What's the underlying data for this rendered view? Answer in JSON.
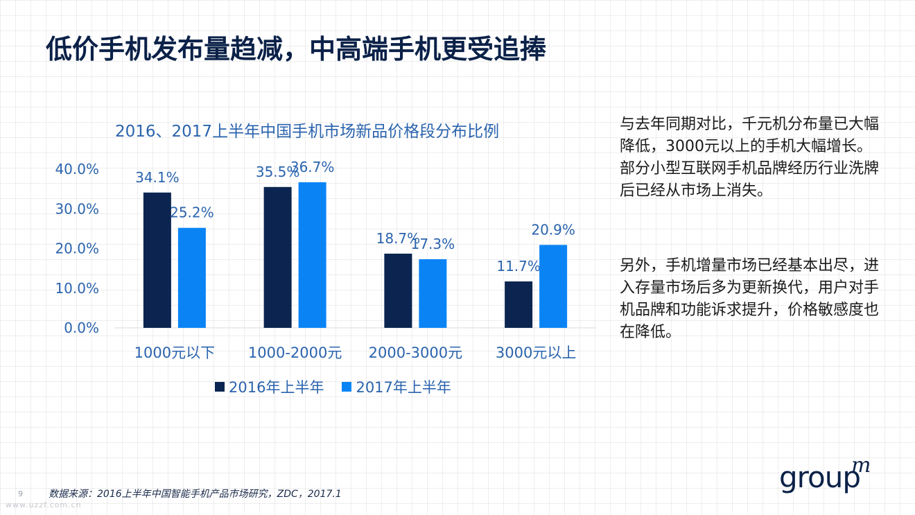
{
  "title": "低价手机发布量趋减，中高端手机更受追捧",
  "chart_data": {
    "type": "bar",
    "title": "2016、2017上半年中国手机市场新品价格段分布比例",
    "categories": [
      "1000元以下",
      "1000-2000元",
      "2000-3000元",
      "3000元以上"
    ],
    "series": [
      {
        "name": "2016年上半年",
        "values": [
          34.1,
          35.5,
          18.7,
          11.7
        ],
        "labels": [
          "34.1%",
          "35.5%",
          "18.7%",
          "11.7%"
        ],
        "color": "#0b2550"
      },
      {
        "name": "2017年上半年",
        "values": [
          25.2,
          36.7,
          17.3,
          20.9
        ],
        "labels": [
          "25.2%",
          "36.7%",
          "17.3%",
          "20.9%"
        ],
        "color": "#0a84f5"
      }
    ],
    "ylim": [
      0,
      40
    ],
    "yticks": [
      "0.0%",
      "10.0%",
      "20.0%",
      "30.0%",
      "40.0%"
    ],
    "ytick_values": [
      0,
      10,
      20,
      30,
      40
    ],
    "legend": "bottom",
    "grid": false,
    "axis_color": "#2a63ad"
  },
  "side_text": {
    "para1": "与去年同期对比，千元机分布量已大幅降低，3000元以上的手机大幅增长。部分小型互联网手机品牌经历行业洗牌后已经从市场上消失。",
    "para2": "另外，手机增量市场已经基本出尽，进入存量市场后多为更新换代，用户对手机品牌和功能诉求提升，价格敏感度也在降低。"
  },
  "source": "数据来源：2016上半年中国智能手机产品市场研究，ZDC，2017.1",
  "page_number": "9",
  "watermark": "www.uzzf.com.cn",
  "logo": {
    "text": "group",
    "mark": "m"
  }
}
